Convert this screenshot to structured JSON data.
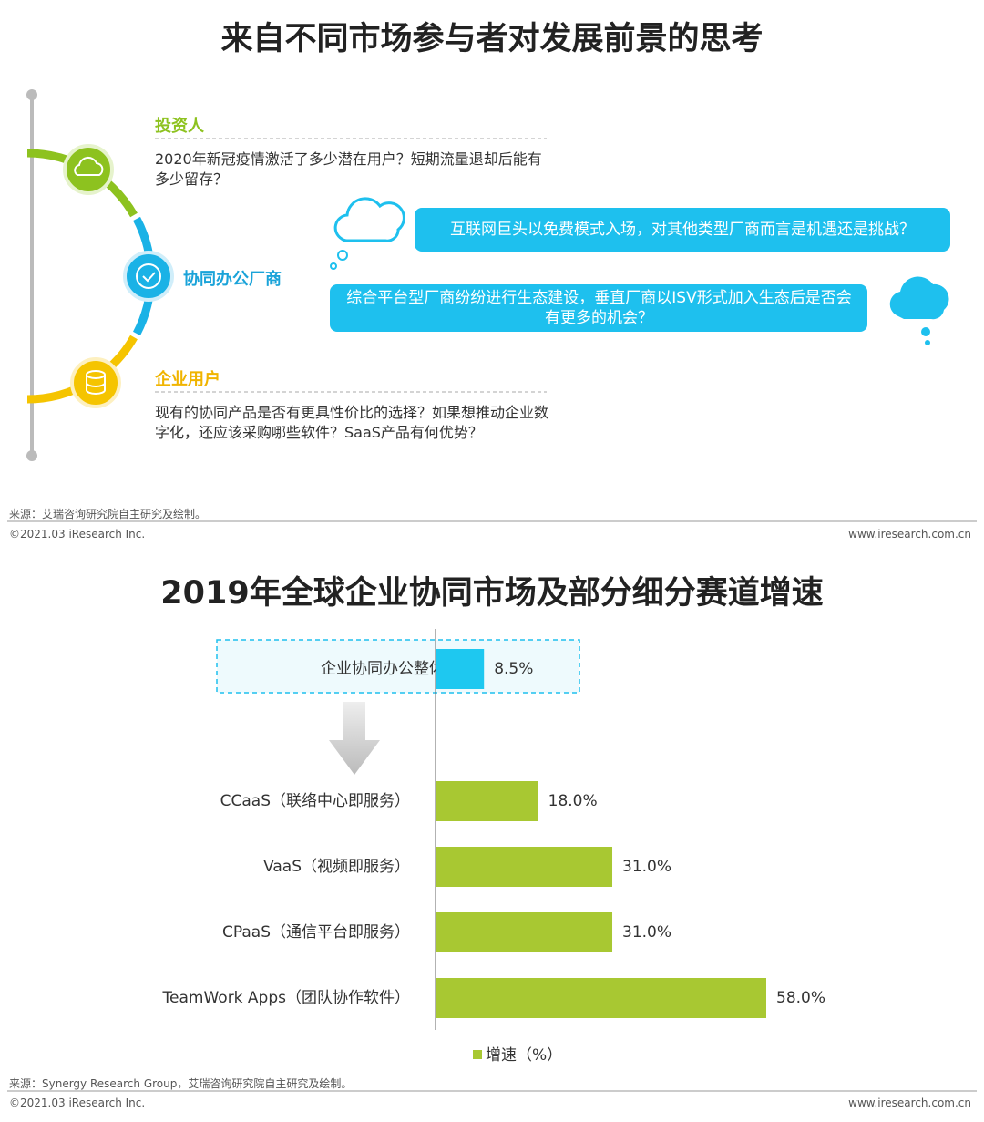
{
  "top": {
    "title": "来自不同市场参与者对发展前景的思考",
    "nodes": [
      {
        "label": "投资人",
        "text": "2020年新冠疫情激活了多少潜在用户？短期流量退却后能有多少留存？"
      },
      {
        "label": "协同办公厂商"
      },
      {
        "label": "企业用户",
        "text": "现有的协同产品是否有更具性价比的选择？如果想推动企业数字化，还应该采购哪些软件？SaaS产品有何优势？"
      }
    ],
    "bubbles": [
      "互联网巨头以免费模式入场，对其他类型厂商而言是机遇还是挑战？",
      "综合平台型厂商纷纷进行生态建设，垂直厂商以ISV形式加入生态后是否会有更多的机会？"
    ],
    "source": "来源：艾瑞咨询研究院自主研究及绘制。",
    "copyright": "©2021.03 iResearch Inc.",
    "website": "www.iresearch.com.cn"
  },
  "chart_data": {
    "type": "hbar",
    "title": "2019年全球企业协同市场及部分细分赛道增速",
    "categories": [
      "企业协同办公整体市场",
      "CCaaS（联络中心即服务）",
      "VaaS（视频即服务）",
      "CPaaS（通信平台即服务）",
      "TeamWork Apps（团队协作软件）"
    ],
    "series": [
      {
        "name": "增速（%）",
        "color": "#a8c832",
        "bar_colors": [
          "#1ec8f0",
          "#a8c832",
          "#a8c832",
          "#a8c832",
          "#a8c832"
        ],
        "values": [
          8.5,
          18.0,
          31.0,
          31.0,
          58.0
        ],
        "value_labels": [
          "8.5%",
          "18.0%",
          "31.0%",
          "31.0%",
          "58.0%"
        ]
      }
    ],
    "source": "来源：Synergy Research Group，艾瑞咨询研究院自主研究及绘制。",
    "copyright": "©2021.03 iResearch Inc.",
    "website": "www.iresearch.com.cn"
  }
}
